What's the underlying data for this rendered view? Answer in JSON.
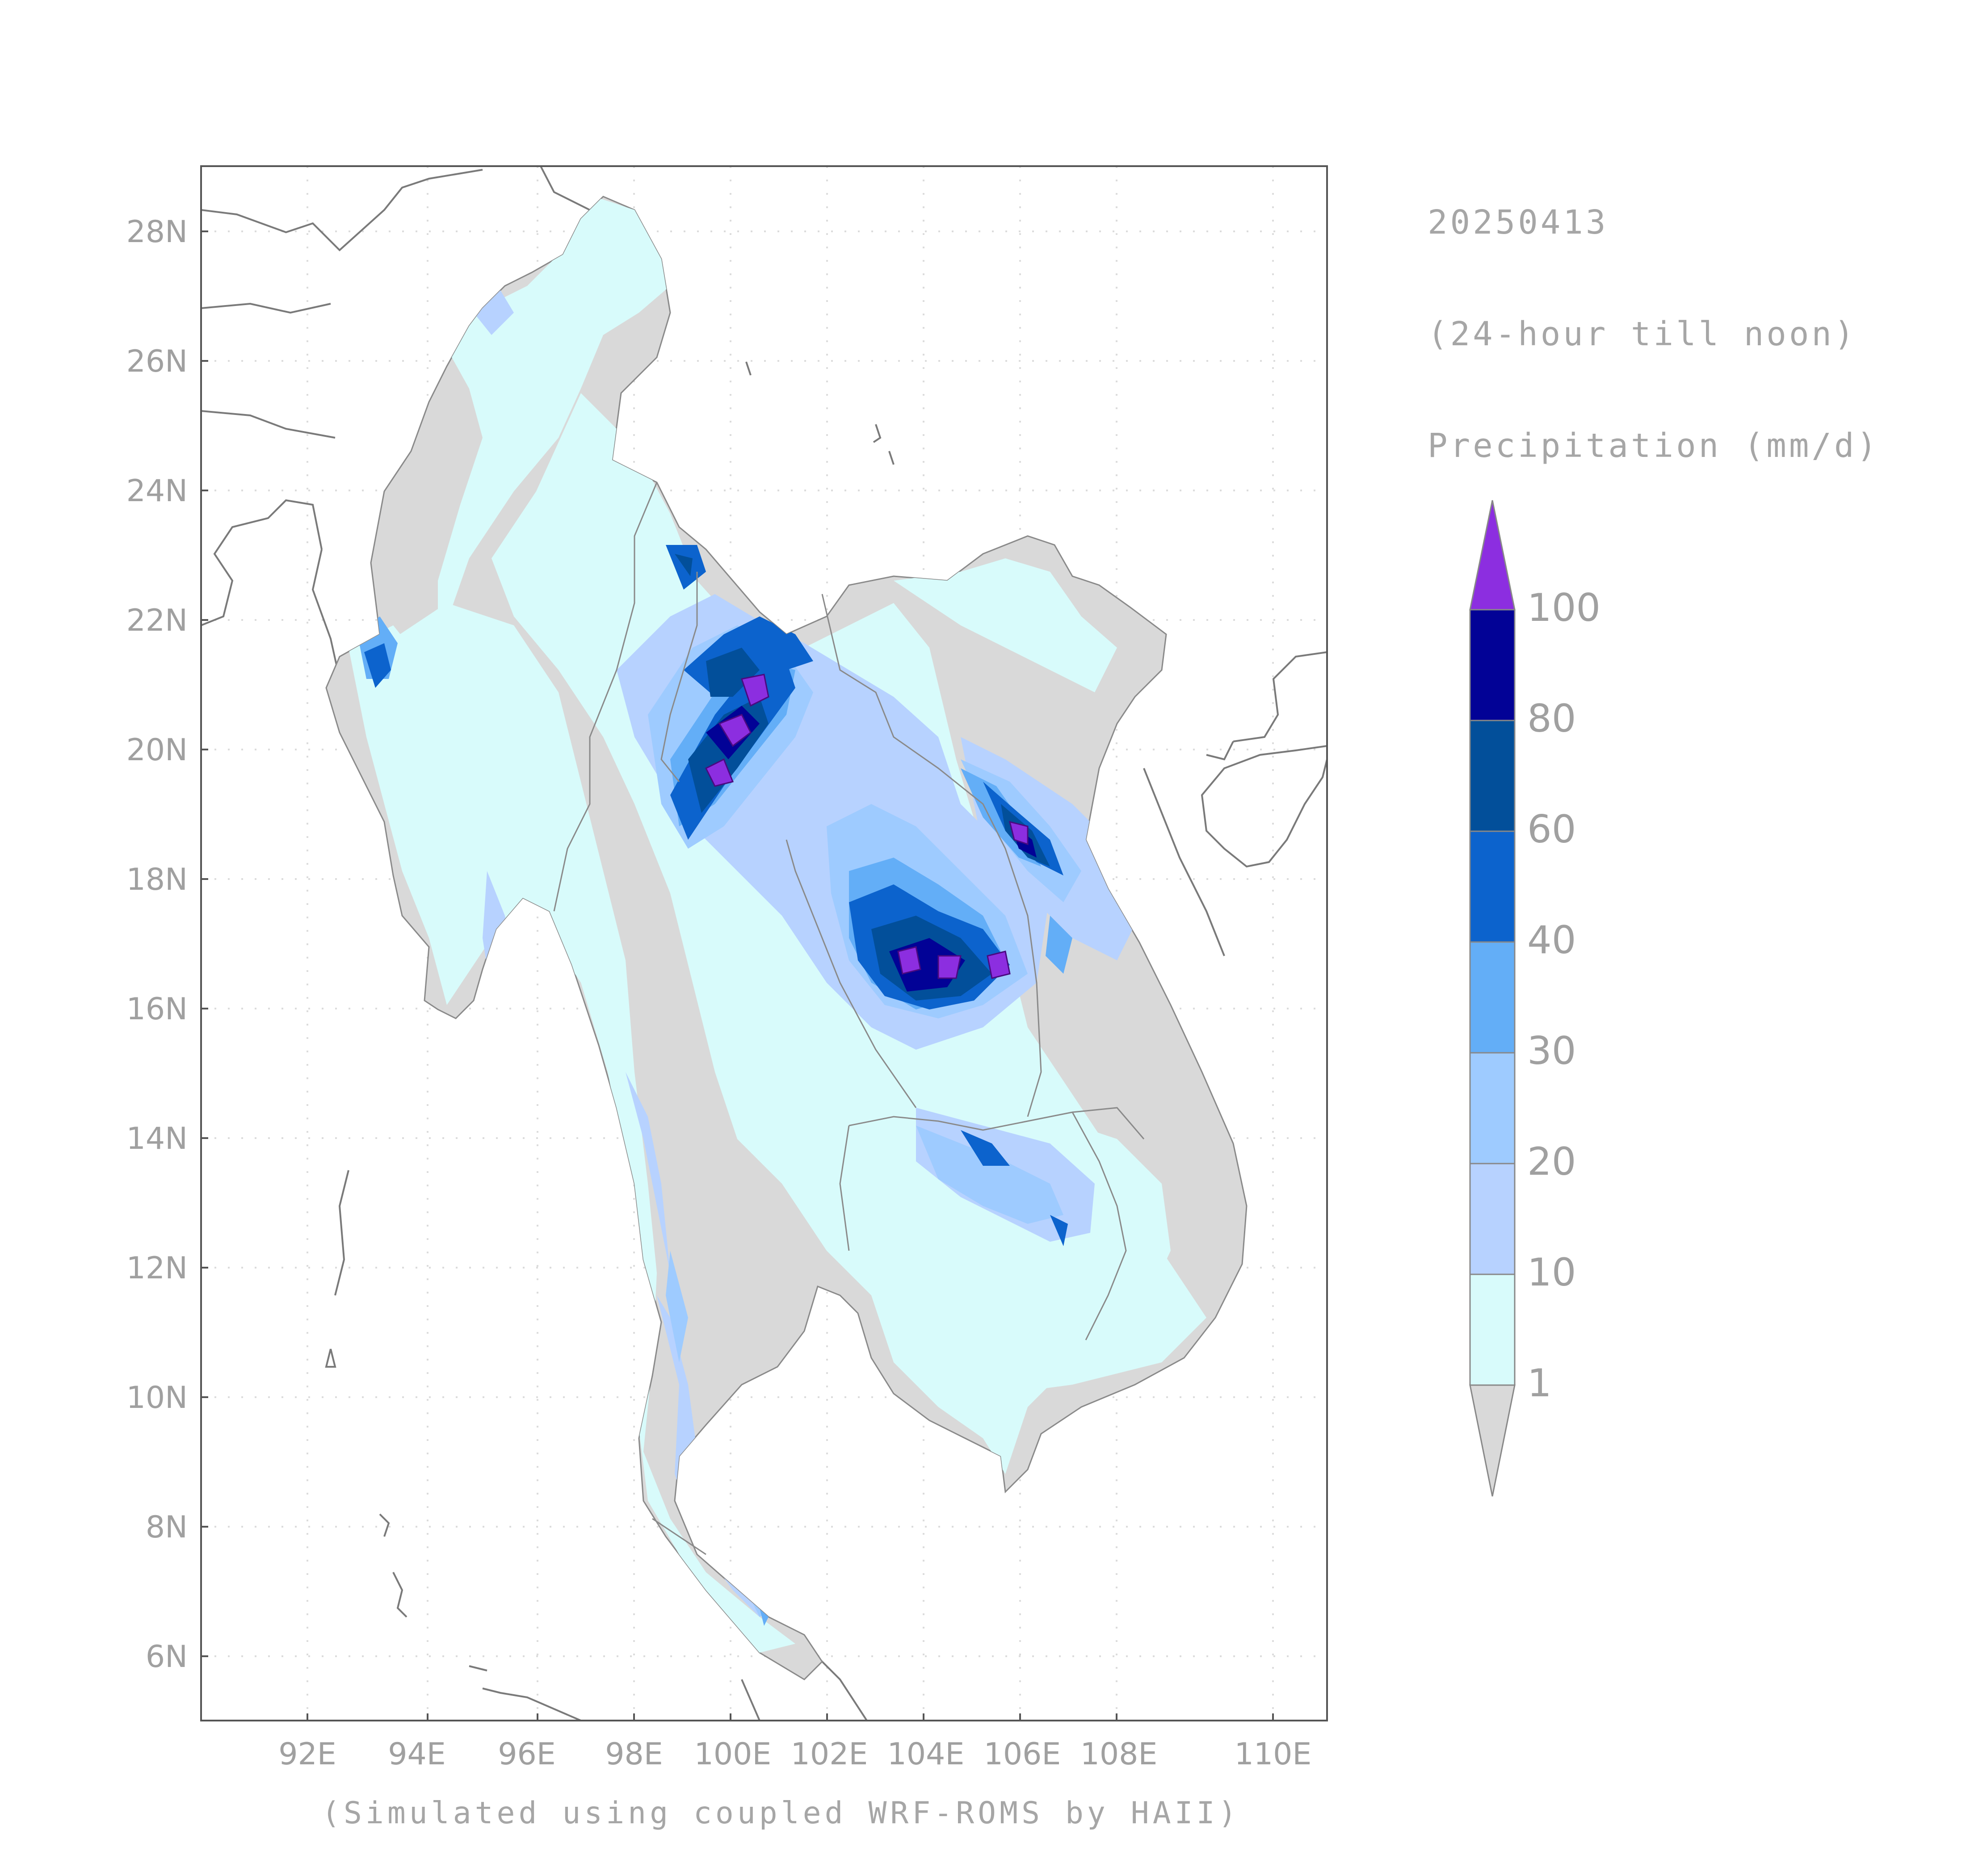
{
  "date_label": "20250413",
  "period_label": "(24-hour till noon)",
  "variable_label": "Precipitation (mm/d)",
  "caption": "(Simulated using coupled WRF-ROMS by HAII)",
  "lat_ticks": [
    "28N",
    "26N",
    "24N",
    "22N",
    "20N",
    "18N",
    "16N",
    "14N",
    "12N",
    "10N",
    "8N",
    "6N"
  ],
  "lon_ticks": [
    "92E",
    "94E",
    "96E",
    "98E",
    "100E",
    "102E",
    "104E",
    "106E",
    "108E",
    "110E"
  ],
  "colorbar": {
    "labels": [
      "1",
      "10",
      "20",
      "30",
      "40",
      "60",
      "80",
      "100"
    ],
    "colors": {
      "below_1": "#d9d9d9",
      "c_1_10": "#d8fbfb",
      "c_10_20": "#b7d2ff",
      "c_20_30": "#9ecbff",
      "c_30_40": "#63aef7",
      "c_40_60": "#0c63cd",
      "c_60_80": "#024f9a",
      "c_80_100": "#020296",
      "above_100": "#8c2ee0"
    }
  }
}
